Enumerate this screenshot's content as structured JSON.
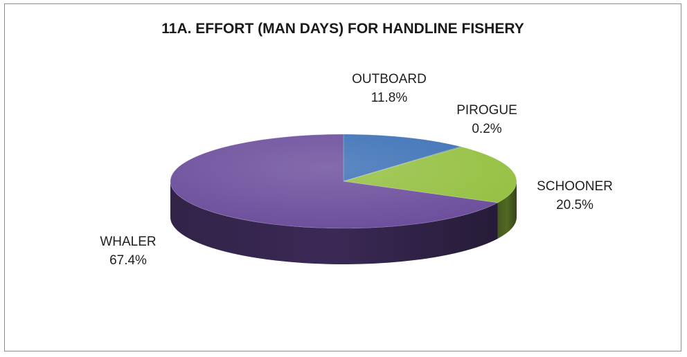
{
  "chart_data": {
    "type": "pie",
    "title": "11A. EFFORT (MAN DAYS) FOR HANDLINE FISHERY",
    "categories": [
      "OUTBOARD",
      "PIROGUE",
      "SCHOONER",
      "WHALER"
    ],
    "values": [
      11.8,
      0.2,
      20.5,
      67.4
    ],
    "value_labels": [
      "11.8%",
      "0.2%",
      "20.5%",
      "67.4%"
    ],
    "colors": [
      "#3a6fb5",
      "#4c7a3a",
      "#93bf3e",
      "#6a4b9b"
    ],
    "style": "3d",
    "legend": "none"
  }
}
